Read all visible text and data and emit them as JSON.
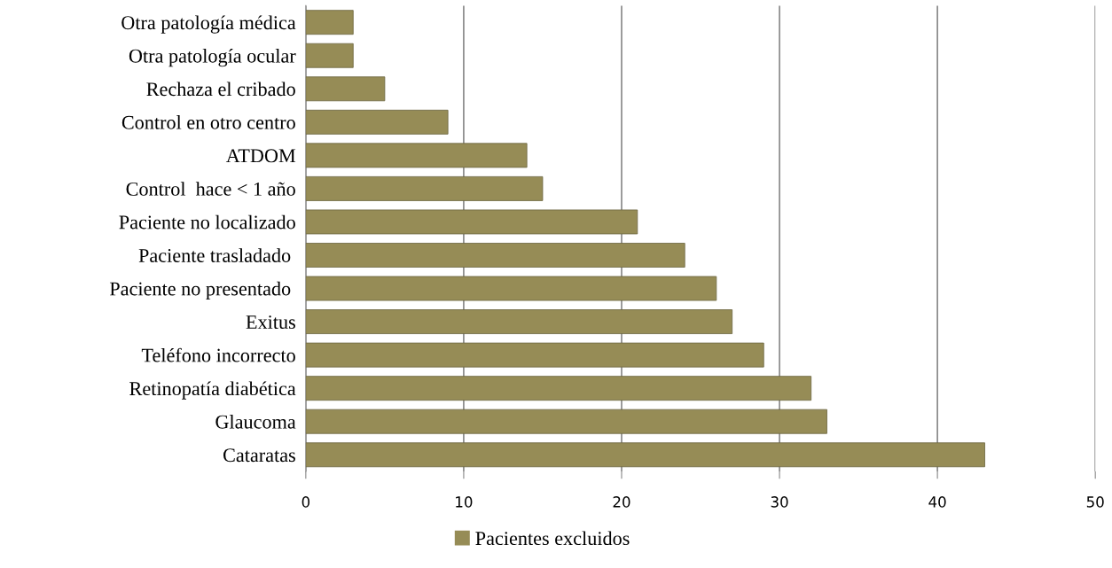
{
  "chart_data": {
    "type": "bar",
    "orientation": "horizontal",
    "categories": [
      "Otra patología médica",
      "Otra patología ocular",
      "Rechaza el cribado",
      "Control en otro centro",
      "ATDOM",
      "Control  hace < 1 año",
      "Paciente no localizado",
      "Paciente trasladado ",
      "Paciente no presentado ",
      "Exitus",
      "Teléfono incorrecto",
      "Retinopatía diabética",
      "Glaucoma",
      "Cataratas"
    ],
    "series": [
      {
        "name": "Pacientes excluidos",
        "color": "#968c56",
        "values": [
          3,
          3,
          5,
          9,
          14,
          15,
          21,
          24,
          26,
          27,
          29,
          32,
          33,
          43
        ]
      }
    ],
    "xlim": [
      0,
      50
    ],
    "xticks": [
      0,
      10,
      20,
      30,
      40,
      50
    ],
    "grid": "x",
    "legend": "bottom"
  }
}
